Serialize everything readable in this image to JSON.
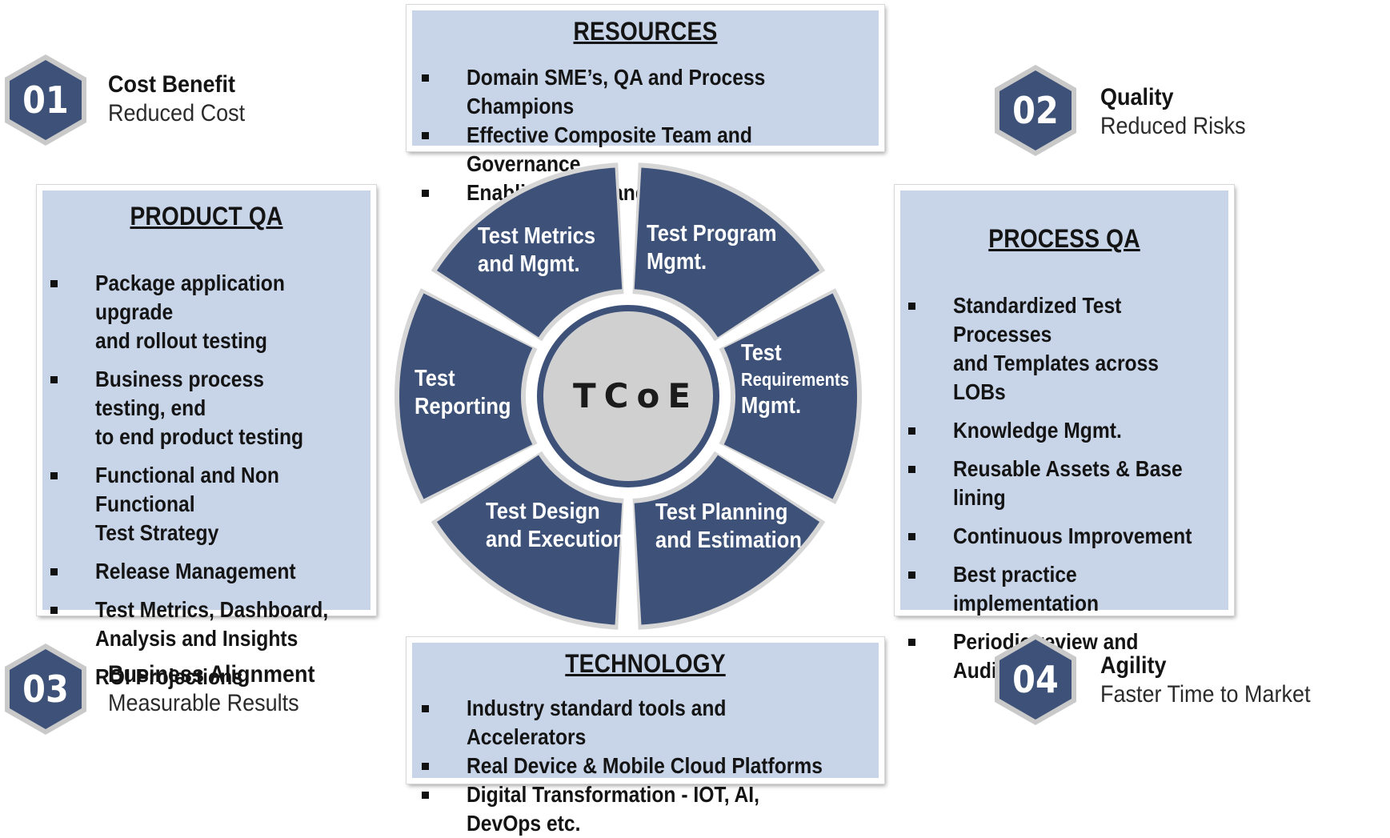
{
  "colors": {
    "panel": "#c8d5e9",
    "segment": "#3e5279",
    "center": "#d0d0d0",
    "hex": "#3e5279"
  },
  "resources": {
    "title": "RESOURCES",
    "items": [
      "Domain SME’s, QA and Process Champions",
      "Effective Composite Team and Governance",
      "Enabling Skills and Training"
    ]
  },
  "technology": {
    "title": "TECHNOLOGY",
    "items": [
      "Industry standard tools and Accelerators",
      "Real Device & Mobile Cloud Platforms",
      "Digital Transformation -  IOT, AI, DevOps etc."
    ]
  },
  "product_qa": {
    "title": "PRODUCT QA",
    "items": [
      [
        "Package application upgrade",
        "and rollout testing"
      ],
      [
        "Business process testing, end",
        "to end product testing"
      ],
      [
        "Functional and Non Functional",
        "Test Strategy"
      ],
      [
        "Release Management"
      ],
      [
        "Test Metrics, Dashboard,",
        "Analysis and Insights"
      ],
      [
        "ROI Projections"
      ]
    ]
  },
  "process_qa": {
    "title": "PROCESS QA",
    "items": [
      [
        "Standardized Test Processes",
        "and Templates across LOBs"
      ],
      [
        "Knowledge Mgmt."
      ],
      [
        "Reusable Assets & Base lining"
      ],
      [
        "Continuous Improvement"
      ],
      [
        "Best practice implementation"
      ],
      [
        "Periodic review and Audits"
      ]
    ]
  },
  "callouts": [
    {
      "num": "01",
      "title": "Cost Benefit",
      "subtitle": "Reduced Cost"
    },
    {
      "num": "02",
      "title": "Quality",
      "subtitle": "Reduced Risks"
    },
    {
      "num": "03",
      "title": "Business Alignment",
      "subtitle": "Measurable Results"
    },
    {
      "num": "04",
      "title": "Agility",
      "subtitle": "Faster Time to Market"
    }
  ],
  "wheel": {
    "center": "TCoE",
    "segments": [
      {
        "line1": "Test Metrics",
        "line2": "and Mgmt."
      },
      {
        "line1": "Test Program",
        "line2": "Mgmt."
      },
      {
        "line1": "Test",
        "line2": "Requirements",
        "line3": "Mgmt."
      },
      {
        "line1": "Test Planning",
        "line2": "and Estimation"
      },
      {
        "line1": "Test Design",
        "line2": "and Execution"
      },
      {
        "line1": "Test",
        "line2": "Reporting"
      }
    ]
  }
}
